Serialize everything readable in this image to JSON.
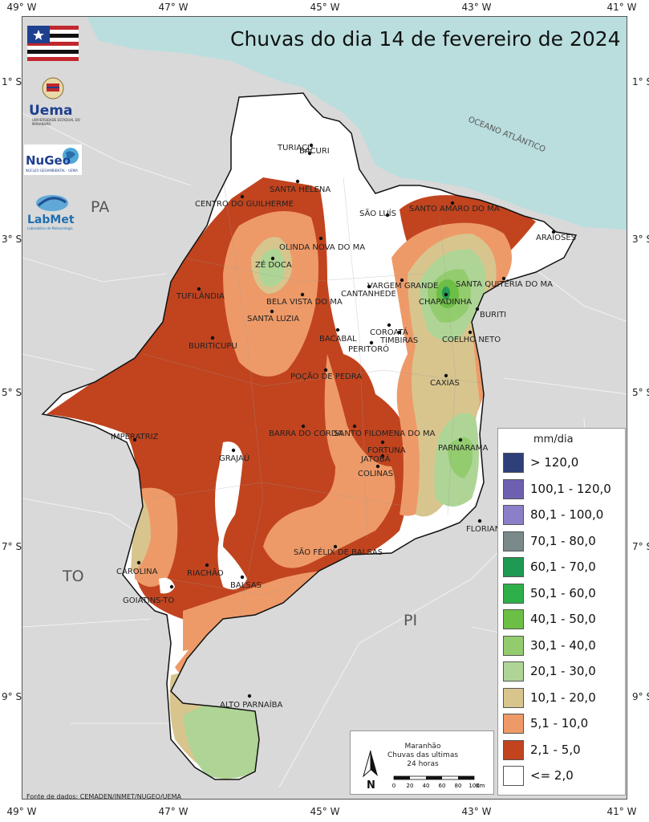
{
  "title": "Chuvas do dia 14 de fevereiro de 2024",
  "ticks": {
    "top": [
      "49° W",
      "47° W",
      "45° W",
      "43° W",
      "41° W"
    ],
    "bottom": [
      "49° W",
      "47° W",
      "45° W",
      "43° W",
      "41° W"
    ],
    "left": [
      "1° S",
      "3° S",
      "5° S",
      "7° S",
      "9° S"
    ],
    "right": [
      "1° S",
      "3° S",
      "5° S",
      "7° S",
      "9° S"
    ]
  },
  "state_labels": {
    "pa": "PA",
    "to": "TO",
    "pi": "PI"
  },
  "ocean_label": "OCEANO ATLÂNTICO",
  "cities": [
    {
      "name": "TURIAÇU"
    },
    {
      "name": "BACURI"
    },
    {
      "name": "SANTA HELENA"
    },
    {
      "name": "CENTRO DO GUILHERME"
    },
    {
      "name": "SÃO LUÍS"
    },
    {
      "name": "SANTO AMARO DO MA"
    },
    {
      "name": "ARAIOSES"
    },
    {
      "name": "OLINDA NOVA DO MA"
    },
    {
      "name": "ZÉ DOCA"
    },
    {
      "name": "VARGEM GRANDE"
    },
    {
      "name": "SANTA QUITÉRIA DO MA"
    },
    {
      "name": "CANTANHEDE"
    },
    {
      "name": "CHAPADINHA"
    },
    {
      "name": "TUFILÂNDIA"
    },
    {
      "name": "BELA VISTA DO MA"
    },
    {
      "name": "SANTA LUZIA"
    },
    {
      "name": "BURITI"
    },
    {
      "name": "COROATÁ"
    },
    {
      "name": "COELHO NETO"
    },
    {
      "name": "BACABAL"
    },
    {
      "name": "TIMBIRAS"
    },
    {
      "name": "BURITICUPU"
    },
    {
      "name": "PERITORÓ"
    },
    {
      "name": "POÇÃO DE PEDRA"
    },
    {
      "name": "CAXIAS"
    },
    {
      "name": "BARRA DO CORDA"
    },
    {
      "name": "SANTO FILOMENA DO MA"
    },
    {
      "name": "IMPERATRIZ"
    },
    {
      "name": "FORTUNA"
    },
    {
      "name": "JATOBÁ"
    },
    {
      "name": "PARNARAMA"
    },
    {
      "name": "GRAJAÚ"
    },
    {
      "name": "COLINAS"
    },
    {
      "name": "FLORIANO-PI"
    },
    {
      "name": "SÃO FÉLIX DE BALSAS"
    },
    {
      "name": "CAROLINA"
    },
    {
      "name": "RIACHÃO"
    },
    {
      "name": "BALSAS"
    },
    {
      "name": "GOIATINS-TO"
    },
    {
      "name": "ALTO PARNAÍBA"
    }
  ],
  "legend": {
    "title": "mm/dia",
    "items": [
      {
        "label": "> 120,0",
        "color": "#2f3f7a"
      },
      {
        "label": "100,1 - 120,0",
        "color": "#6f5fb0"
      },
      {
        "label": "80,1 - 100,0",
        "color": "#8c7fc9"
      },
      {
        "label": "70,1 - 80,0",
        "color": "#7a8a8a"
      },
      {
        "label": "60,1 - 70,0",
        "color": "#1f9a52"
      },
      {
        "label": "50,1 - 60,0",
        "color": "#2db04a"
      },
      {
        "label": "40,1 - 50,0",
        "color": "#6cbf45"
      },
      {
        "label": "30,1 - 40,0",
        "color": "#93cc6e"
      },
      {
        "label": "20,1 - 30,0",
        "color": "#aed596"
      },
      {
        "label": "10,1 - 20,0",
        "color": "#d8c58e"
      },
      {
        "label": "5,1 - 10,0",
        "color": "#ee9a68"
      },
      {
        "label": "2,1 - 5,0",
        "color": "#c1441f"
      },
      {
        "label": "<= 2,0",
        "color": "#ffffff"
      }
    ]
  },
  "info": {
    "line1": "Maranhão",
    "line2": "Chuvas das ultimas",
    "line3": "24 horas",
    "north": "N",
    "scale_ticks": [
      "0",
      "20",
      "40",
      "60",
      "80",
      "100"
    ],
    "scale_unit": "Km"
  },
  "source": "Fonte de dados: CEMADEN/INMET/NUGEO/UEMA",
  "logos": {
    "uema": "Uema",
    "uema_sub": "UNIVERSIDADE ESTADUAL DO MARANHÃO",
    "nugeo": "NuGeo",
    "nugeo_sub": "NÚCLEO GEOAMBIENTAL - UEMA",
    "labmet": "LabMet",
    "labmet_sub": "Laboratório de Meteorologia"
  },
  "colors": {
    "ocean": "#b9dedd",
    "land": "#d9d9d9",
    "state": "#ffffff"
  }
}
